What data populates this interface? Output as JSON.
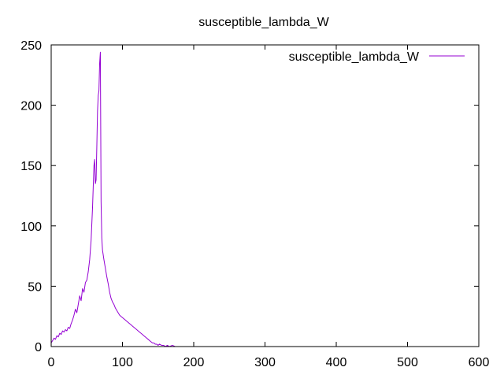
{
  "chart_data": {
    "type": "line",
    "title": "susceptible_lambda_W",
    "xlabel": "",
    "ylabel": "",
    "xlim": [
      0,
      600
    ],
    "ylim": [
      0,
      250
    ],
    "x_ticks": [
      0,
      100,
      200,
      300,
      400,
      500,
      600
    ],
    "y_ticks": [
      0,
      50,
      100,
      150,
      200,
      250
    ],
    "grid": false,
    "legend_position": "top-right",
    "series": [
      {
        "name": "susceptible_lambda_W",
        "color": "#9400d3",
        "points": [
          [
            0,
            3
          ],
          [
            2,
            5
          ],
          [
            4,
            7
          ],
          [
            6,
            6
          ],
          [
            8,
            9
          ],
          [
            10,
            8
          ],
          [
            12,
            11
          ],
          [
            14,
            10
          ],
          [
            16,
            13
          ],
          [
            18,
            12
          ],
          [
            20,
            14
          ],
          [
            22,
            13
          ],
          [
            24,
            16
          ],
          [
            26,
            15
          ],
          [
            28,
            19
          ],
          [
            30,
            22
          ],
          [
            32,
            26
          ],
          [
            34,
            31
          ],
          [
            36,
            28
          ],
          [
            38,
            35
          ],
          [
            40,
            42
          ],
          [
            42,
            38
          ],
          [
            44,
            48
          ],
          [
            46,
            45
          ],
          [
            48,
            53
          ],
          [
            50,
            55
          ],
          [
            52,
            62
          ],
          [
            54,
            72
          ],
          [
            56,
            88
          ],
          [
            58,
            115
          ],
          [
            60,
            150
          ],
          [
            61,
            155
          ],
          [
            62,
            135
          ],
          [
            63,
            138
          ],
          [
            64,
            165
          ],
          [
            65,
            195
          ],
          [
            66,
            208
          ],
          [
            67,
            212
          ],
          [
            68,
            235
          ],
          [
            69,
            244
          ],
          [
            70,
            120
          ],
          [
            71,
            90
          ],
          [
            72,
            80
          ],
          [
            74,
            72
          ],
          [
            76,
            65
          ],
          [
            78,
            58
          ],
          [
            80,
            52
          ],
          [
            82,
            45
          ],
          [
            84,
            40
          ],
          [
            86,
            37
          ],
          [
            88,
            35
          ],
          [
            90,
            32
          ],
          [
            92,
            30
          ],
          [
            94,
            28
          ],
          [
            96,
            26
          ],
          [
            98,
            25
          ],
          [
            100,
            24
          ],
          [
            102,
            23
          ],
          [
            104,
            22
          ],
          [
            106,
            21
          ],
          [
            108,
            20
          ],
          [
            110,
            19
          ],
          [
            112,
            18
          ],
          [
            114,
            17
          ],
          [
            116,
            16
          ],
          [
            118,
            15
          ],
          [
            120,
            14
          ],
          [
            122,
            13
          ],
          [
            124,
            12
          ],
          [
            126,
            11
          ],
          [
            128,
            10
          ],
          [
            130,
            9
          ],
          [
            132,
            8
          ],
          [
            134,
            7
          ],
          [
            136,
            6
          ],
          [
            138,
            5
          ],
          [
            140,
            4
          ],
          [
            142,
            3
          ],
          [
            144,
            3
          ],
          [
            146,
            2
          ],
          [
            148,
            2
          ],
          [
            150,
            1
          ],
          [
            152,
            2
          ],
          [
            155,
            1
          ],
          [
            158,
            1
          ],
          [
            160,
            0
          ],
          [
            163,
            1
          ],
          [
            166,
            0
          ],
          [
            170,
            1
          ],
          [
            174,
            0
          ]
        ]
      }
    ]
  }
}
